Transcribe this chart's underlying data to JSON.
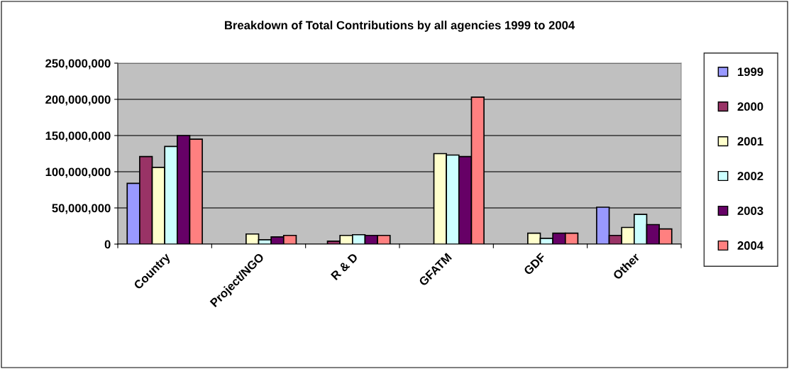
{
  "chart_data": {
    "type": "bar",
    "title": "Breakdown of Total Contributions by all agencies 1999 to 2004",
    "categories": [
      "Country",
      "Project/NGO",
      "R & D",
      "GFATM",
      "GDF",
      "Other"
    ],
    "series": [
      {
        "name": "1999",
        "color": "#9999ff",
        "values": [
          84000000,
          null,
          null,
          null,
          null,
          51000000
        ]
      },
      {
        "name": "2000",
        "color": "#993366",
        "values": [
          121000000,
          null,
          4000000,
          null,
          null,
          12000000
        ]
      },
      {
        "name": "2001",
        "color": "#ffffcc",
        "values": [
          106000000,
          14000000,
          12000000,
          125000000,
          15000000,
          23000000
        ]
      },
      {
        "name": "2002",
        "color": "#ccffff",
        "values": [
          135000000,
          6000000,
          13000000,
          123000000,
          8000000,
          41000000
        ]
      },
      {
        "name": "2003",
        "color": "#660066",
        "values": [
          150000000,
          10000000,
          12000000,
          121000000,
          15000000,
          27000000
        ]
      },
      {
        "name": "2004",
        "color": "#ff8080",
        "values": [
          145000000,
          12000000,
          12000000,
          203000000,
          15000000,
          21000000
        ]
      }
    ],
    "ylim": [
      0,
      250000000
    ],
    "yticks": [
      {
        "value": 0,
        "label": "0"
      },
      {
        "value": 50000000,
        "label": "50,000,000"
      },
      {
        "value": 100000000,
        "label": "100,000,000"
      },
      {
        "value": 150000000,
        "label": "150,000,000"
      },
      {
        "value": 200000000,
        "label": "200,000,000"
      },
      {
        "value": 250000000,
        "label": "250,000,000"
      }
    ],
    "grid": "y",
    "legend": "right"
  }
}
